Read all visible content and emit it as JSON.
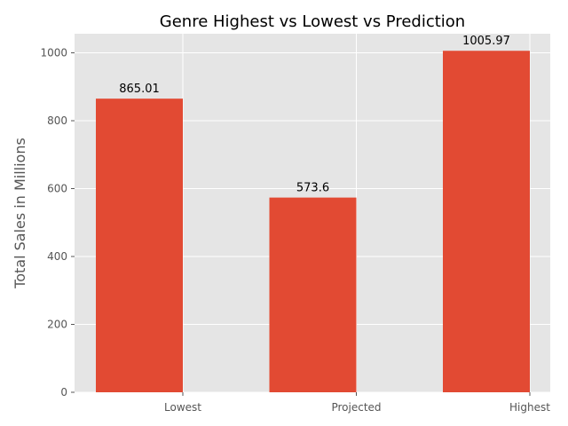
{
  "chart_data": {
    "type": "bar",
    "title": "Genre Highest vs Lowest vs Prediction",
    "xlabel": "",
    "ylabel": "Total Sales in Millions",
    "categories": [
      "Lowest",
      "Projected",
      "Highest"
    ],
    "values": [
      865.01,
      573.6,
      1005.97
    ],
    "data_labels": [
      "865.01",
      "573.6",
      "1005.97"
    ],
    "ylim": [
      0,
      1056.27
    ],
    "yticks": [
      0,
      200,
      400,
      600,
      800,
      1000
    ],
    "grid": true,
    "legend": "none",
    "colors": {
      "bar": "#E24A33",
      "plot_background": "#E5E5E5",
      "grid": "#FFFFFF",
      "text": "#555555"
    }
  }
}
